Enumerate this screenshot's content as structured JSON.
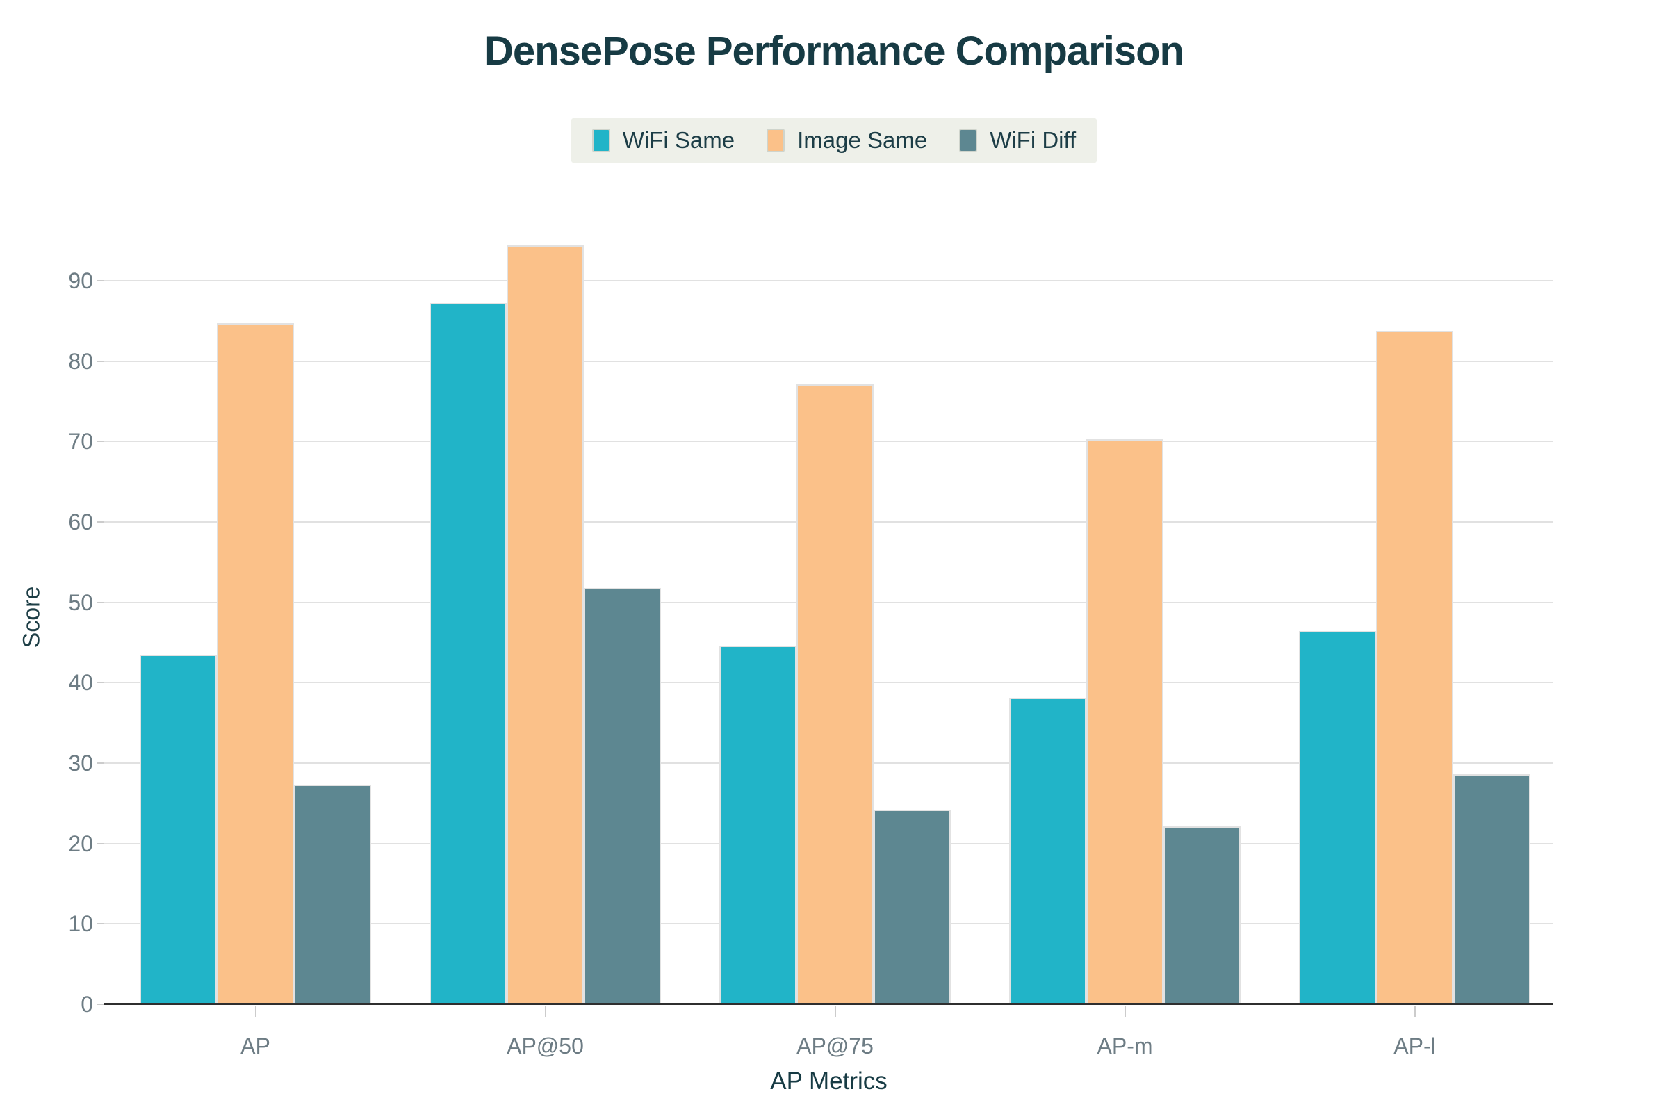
{
  "title": "DensePose Performance Comparison",
  "legend": {
    "background_color": "#eef0e9",
    "items": [
      {
        "label": "WiFi Same",
        "color": "#21b4c8"
      },
      {
        "label": "Image Same",
        "color": "#fbc189"
      },
      {
        "label": "WiFi Diff",
        "color": "#5d8791"
      }
    ]
  },
  "axes": {
    "y_title": "Score",
    "x_title": "AP Metrics",
    "y_ticks": [
      "0",
      "10",
      "20",
      "30",
      "40",
      "50",
      "60",
      "70",
      "80",
      "90"
    ]
  },
  "chart_data": {
    "type": "bar",
    "title": "DensePose Performance Comparison",
    "categories": [
      "AP",
      "AP@50",
      "AP@75",
      "AP-m",
      "AP-l"
    ],
    "series": [
      {
        "name": "WiFi Same",
        "color": "#21b4c8",
        "values": [
          43.5,
          87.2,
          44.6,
          38.1,
          46.4
        ]
      },
      {
        "name": "Image Same",
        "color": "#fbc189",
        "values": [
          84.7,
          94.4,
          77.1,
          70.3,
          83.8
        ]
      },
      {
        "name": "WiFi Diff",
        "color": "#5d8791",
        "values": [
          27.3,
          51.8,
          24.2,
          22.1,
          28.6
        ]
      }
    ],
    "xlabel": "AP Metrics",
    "ylabel": "Score",
    "ylim": [
      0,
      96.4
    ],
    "grid": true,
    "legend_position": "top"
  },
  "colors": {
    "background": "#ffffff",
    "title_text": "#173b44",
    "axis_text": "#6d7c84",
    "gridline": "#e1e1e1",
    "axis_line": "#2f2f2f",
    "bar_border": "#e2e2e2",
    "tick_mark": "#cccccc"
  }
}
